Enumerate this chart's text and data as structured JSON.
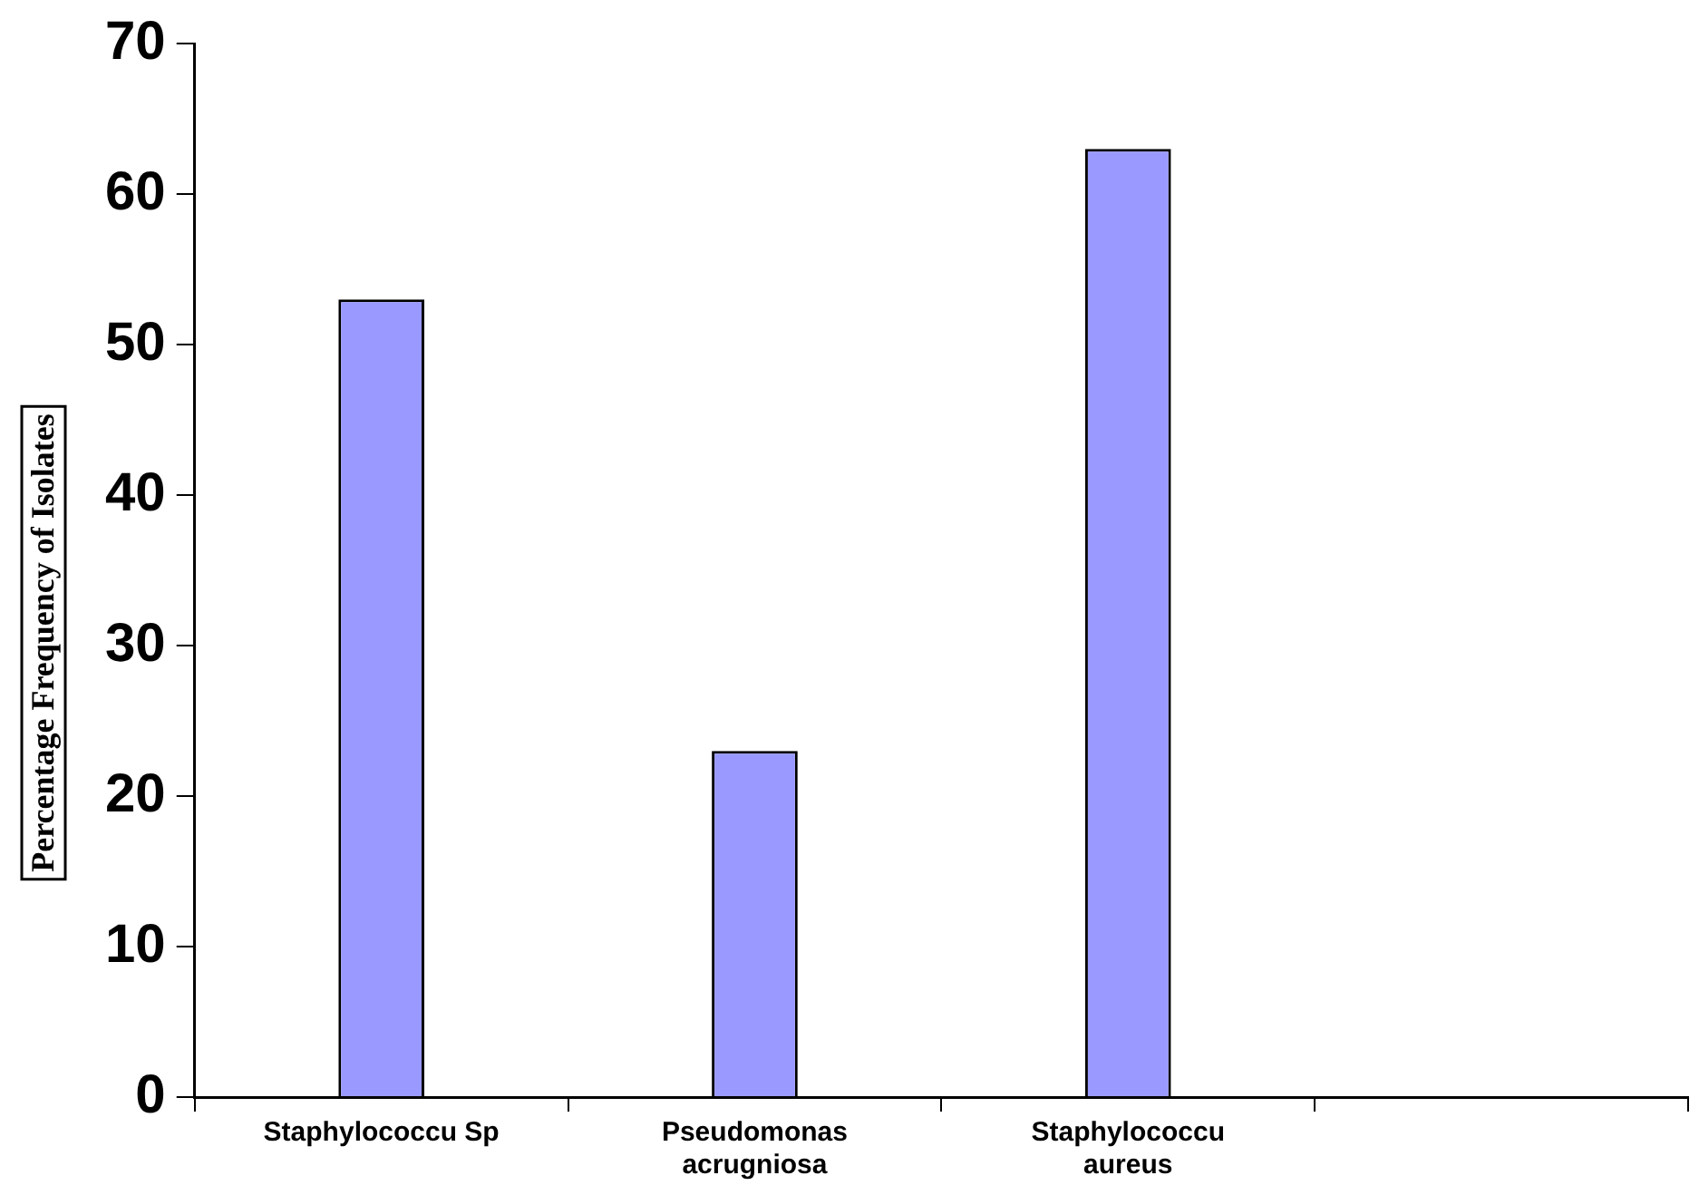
{
  "chart_data": {
    "type": "bar",
    "ylabel": "Percentage Frequency of Isolates",
    "categories": [
      "Staphylococcu Sp",
      "Pseudomonas acrugniosa",
      "Staphylococcu aureus",
      null
    ],
    "values": [
      53,
      23,
      63,
      null
    ],
    "color": "#9999ff",
    "ylim": [
      0,
      70
    ],
    "yticks": [
      0,
      10,
      20,
      30,
      40,
      50,
      60,
      70
    ],
    "grid": false,
    "legend": false
  }
}
